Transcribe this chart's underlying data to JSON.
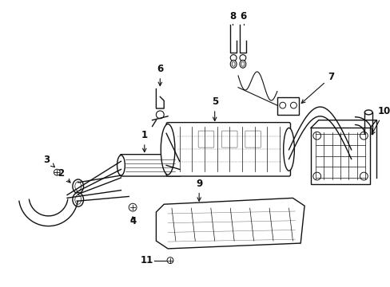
{
  "bg_color": "#ffffff",
  "line_color": "#111111",
  "fig_width": 4.89,
  "fig_height": 3.6,
  "dpi": 100,
  "xlim": [
    0,
    489
  ],
  "ylim": [
    0,
    360
  ]
}
